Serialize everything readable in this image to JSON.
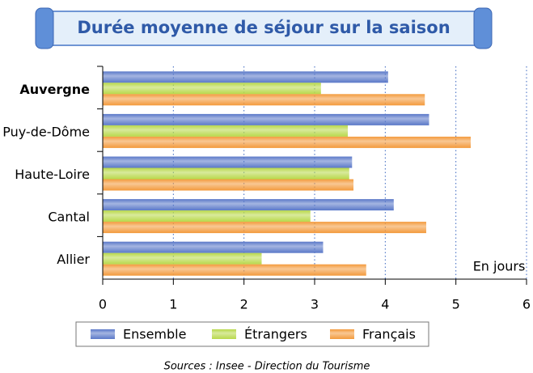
{
  "chart_data": {
    "type": "hbar",
    "title": "Durée moyenne de séjour sur la saison",
    "categories": [
      "Auvergne",
      "Puy-de-Dôme",
      "Haute-Loire",
      "Cantal",
      "Allier"
    ],
    "series": [
      {
        "name": "Ensemble",
        "color": "#5a78c8",
        "values": [
          4.04,
          4.62,
          3.53,
          4.12,
          3.12
        ]
      },
      {
        "name": "Étrangers",
        "color": "#b8d84a",
        "values": [
          3.09,
          3.47,
          3.49,
          2.94,
          2.25
        ]
      },
      {
        "name": "Français",
        "color": "#f39a3c",
        "values": [
          4.56,
          5.21,
          3.55,
          4.58,
          3.73
        ]
      }
    ],
    "xlim": [
      0,
      6
    ],
    "xticks": [
      0,
      1,
      2,
      3,
      4,
      5,
      6
    ],
    "grid": true,
    "annotation": "En jours",
    "source": "Sources : Insee - Direction du Tourisme"
  }
}
